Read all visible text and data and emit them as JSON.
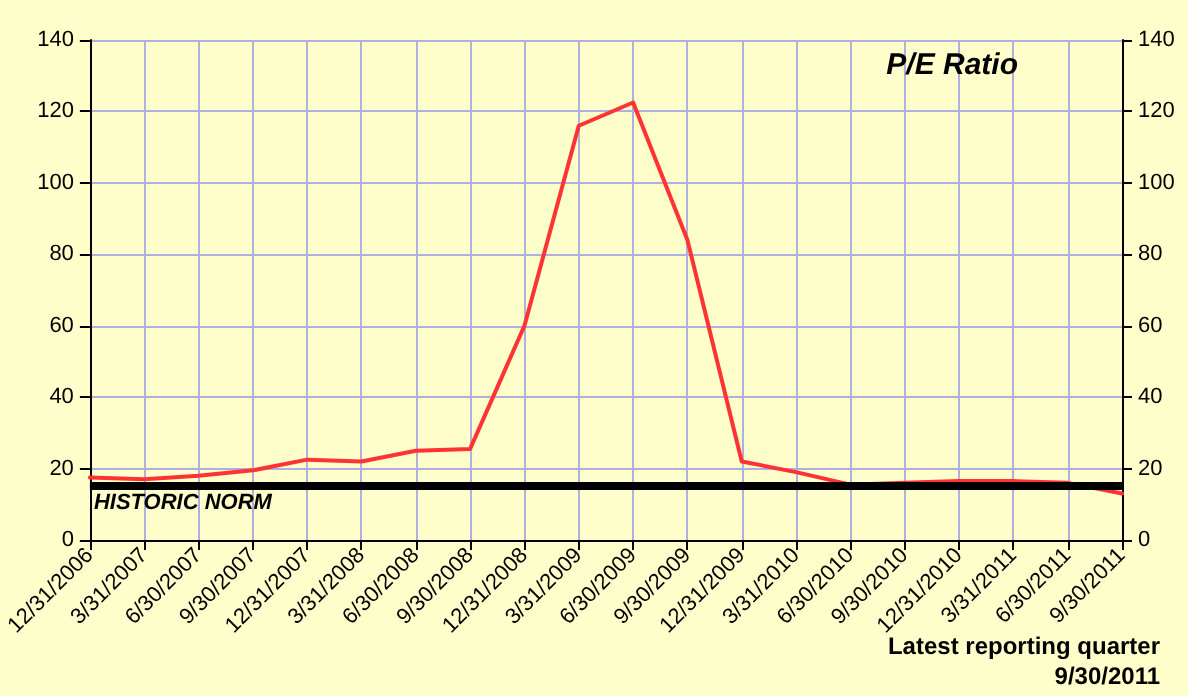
{
  "chart_data": {
    "type": "line",
    "title": "P/E Ratio",
    "categories": [
      "12/31/2006",
      "3/31/2007",
      "6/30/2007",
      "9/30/2007",
      "12/31/2007",
      "3/31/2008",
      "6/30/2008",
      "9/30/2008",
      "12/31/2008",
      "3/31/2009",
      "6/30/2009",
      "9/30/2009",
      "12/31/2009",
      "3/31/2010",
      "6/30/2010",
      "9/30/2010",
      "12/31/2010",
      "3/31/2011",
      "6/30/2011",
      "9/30/2011"
    ],
    "series": [
      {
        "color": "#ff3333",
        "values": [
          17.5,
          17,
          18,
          19.5,
          22.5,
          22,
          25,
          25.5,
          60,
          116,
          122.5,
          84,
          22,
          19,
          15.5,
          16,
          16.5,
          16.5,
          16,
          13
        ]
      }
    ],
    "ylim": [
      0,
      140
    ],
    "yticks": [
      0,
      20,
      40,
      60,
      80,
      100,
      120,
      140
    ],
    "y2lim": [
      0,
      140
    ],
    "y2ticks": [
      0,
      20,
      40,
      60,
      80,
      100,
      120,
      140
    ],
    "ref_lines": [
      {
        "axis": "y",
        "value": 15,
        "label": "HISTORIC NORM",
        "color": "#000000"
      }
    ],
    "annotations": [
      "Latest reporting quarter",
      "9/30/2011"
    ],
    "grid": true,
    "marker": "none",
    "line_style": "solid"
  }
}
